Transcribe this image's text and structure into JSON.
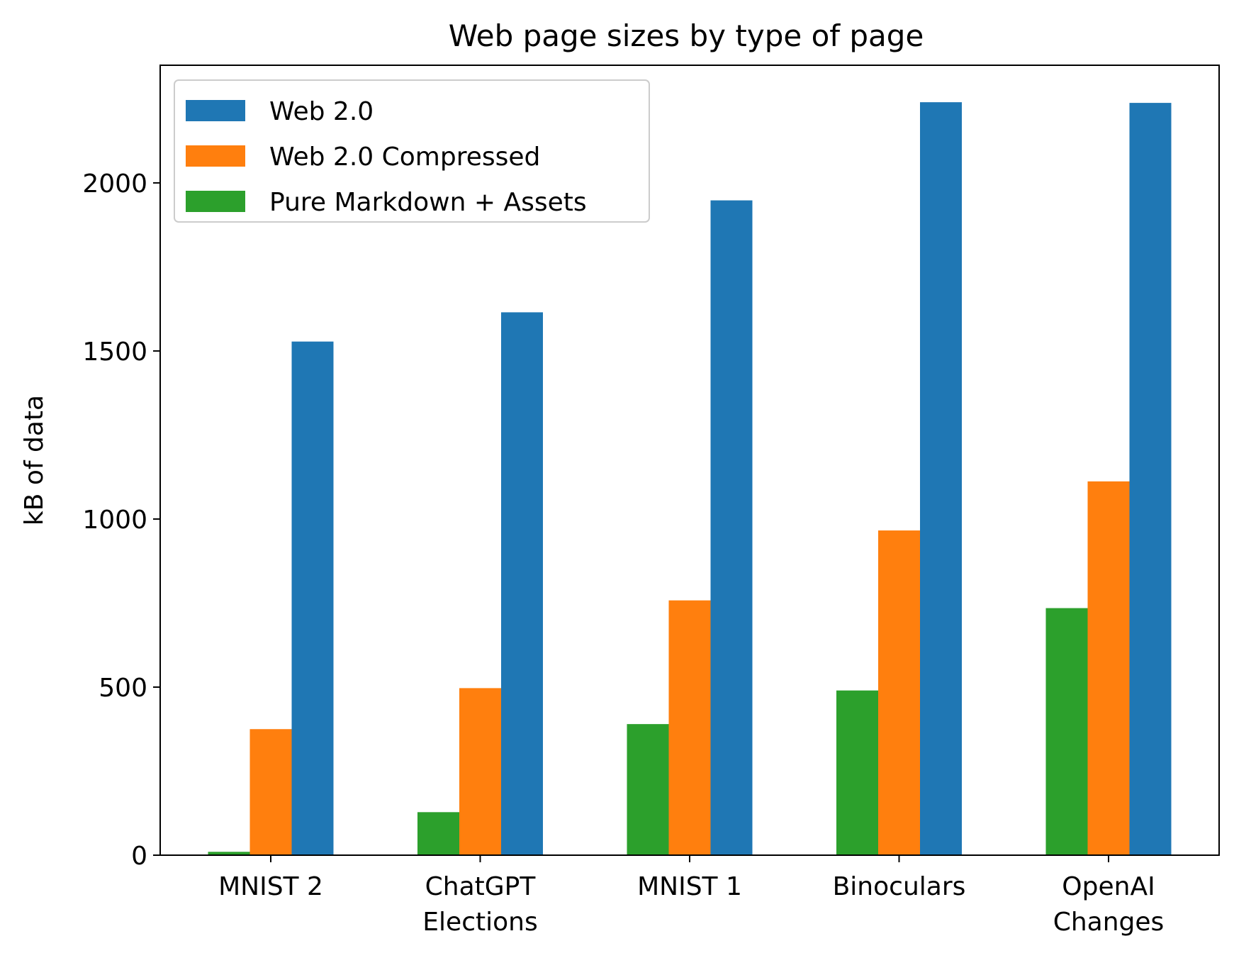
{
  "chart_data": {
    "type": "bar",
    "title": "Web page sizes by type of page",
    "xlabel": "",
    "ylabel": "kB of data",
    "categories": [
      [
        "MNIST 2"
      ],
      [
        "ChatGPT",
        "Elections"
      ],
      [
        "MNIST 1"
      ],
      [
        "Binoculars"
      ],
      [
        "OpenAI",
        "Changes"
      ]
    ],
    "series": [
      {
        "name": "Pure Markdown + Assets",
        "color": "#2ca02c",
        "values": [
          10,
          128,
          390,
          490,
          735
        ]
      },
      {
        "name": "Web 2.0 Compressed",
        "color": "#ff7f0e",
        "values": [
          375,
          497,
          758,
          966,
          1112
        ]
      },
      {
        "name": "Web 2.0",
        "color": "#1f77b4",
        "values": [
          1528,
          1615,
          1948,
          2240,
          2238
        ]
      }
    ],
    "legend_order": [
      "Web 2.0",
      "Web 2.0 Compressed",
      "Pure Markdown + Assets"
    ],
    "ylim": [
      0,
      2350
    ],
    "yticks": [
      0,
      500,
      1000,
      1500,
      2000
    ],
    "grid": false,
    "legend_position": "upper-left"
  }
}
